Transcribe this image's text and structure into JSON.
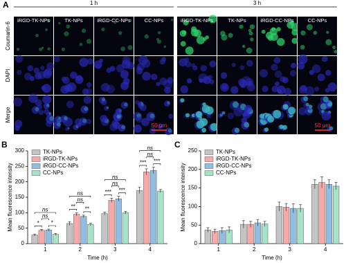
{
  "microscopy": {
    "panel": "A",
    "groups": [
      {
        "time": "1 h",
        "columns": [
          "iRGD-TK-NPs",
          "TK-NPs",
          "iRGD-CC-NPs",
          "CC-NPs"
        ],
        "scale_bar": "50 μm"
      },
      {
        "time": "3 h",
        "columns": [
          "iRGD-TK-NPs",
          "TK-NPs",
          "iRGD-CC-NPs",
          "CC-NPs"
        ],
        "scale_bar": "50 μm"
      }
    ],
    "rows": [
      "Coumarin-6",
      "DAPI",
      "Merge"
    ]
  },
  "chart_data": [
    {
      "type": "bar",
      "panel": "B",
      "x_label": "Time (h)",
      "y_label": "Mean fluorescence intensity",
      "categories": [
        "1",
        "2",
        "3",
        "4"
      ],
      "ylim": [
        0,
        300
      ],
      "yticks": [
        0,
        50,
        100,
        150,
        200,
        250,
        300
      ],
      "legend": "upper left",
      "series": [
        {
          "name": "TK-NPs",
          "color": "#c4c4c4",
          "values": [
            28,
            65,
            97,
            172
          ],
          "errors": [
            3,
            6,
            5,
            10
          ]
        },
        {
          "name": "iRGD-TK-NPs",
          "color": "#f6a9a9",
          "values": [
            43,
            95,
            140,
            232
          ],
          "errors": [
            3,
            5,
            7,
            10
          ]
        },
        {
          "name": "iRGD-CC-NPs",
          "color": "#92bde3",
          "values": [
            44,
            88,
            145,
            237
          ],
          "errors": [
            3,
            4,
            8,
            10
          ]
        },
        {
          "name": "CC-NPs",
          "color": "#a6e3c9",
          "values": [
            30,
            62,
            100,
            170
          ],
          "errors": [
            3,
            4,
            4,
            5
          ]
        }
      ],
      "annotations": [
        [
          {
            "label": "*",
            "pair": [
              0,
              1
            ]
          },
          {
            "label": "*",
            "pair": [
              2,
              3
            ]
          },
          {
            "label": "ns",
            "pair": [
              1,
              2
            ]
          },
          {
            "label": "ns",
            "pair": [
              0,
              3
            ]
          }
        ],
        [
          {
            "label": "**",
            "pair": [
              0,
              1
            ]
          },
          {
            "label": "**",
            "pair": [
              2,
              3
            ]
          },
          {
            "label": "ns",
            "pair": [
              1,
              2
            ]
          },
          {
            "label": "ns",
            "pair": [
              0,
              3
            ]
          }
        ],
        [
          {
            "label": "***",
            "pair": [
              0,
              1
            ]
          },
          {
            "label": "***",
            "pair": [
              2,
              3
            ]
          },
          {
            "label": "ns",
            "pair": [
              1,
              2
            ]
          },
          {
            "label": "ns",
            "pair": [
              0,
              3
            ]
          }
        ],
        [
          {
            "label": "***",
            "pair": [
              0,
              1
            ]
          },
          {
            "label": "***",
            "pair": [
              2,
              3
            ]
          },
          {
            "label": "ns",
            "pair": [
              1,
              2
            ]
          },
          {
            "label": "ns",
            "pair": [
              0,
              3
            ]
          }
        ]
      ]
    },
    {
      "type": "bar",
      "panel": "C",
      "x_label": "Time (h)",
      "y_label": "Mean fluorescence intensity",
      "categories": [
        "1",
        "2",
        "3",
        "4"
      ],
      "ylim": [
        0,
        250
      ],
      "yticks": [
        0,
        50,
        100,
        150,
        200,
        250
      ],
      "legend": "upper left",
      "series": [
        {
          "name": "TK-NPs",
          "color": "#c4c4c4",
          "values": [
            37,
            52,
            100,
            160
          ],
          "errors": [
            6,
            10,
            12,
            12
          ]
        },
        {
          "name": "iRGD-TK-NPs",
          "color": "#f6a9a9",
          "values": [
            33,
            52,
            98,
            165
          ],
          "errors": [
            6,
            8,
            10,
            15
          ]
        },
        {
          "name": "iRGD-CC-NPs",
          "color": "#92bde3",
          "values": [
            35,
            56,
            95,
            160
          ],
          "errors": [
            8,
            9,
            12,
            12
          ]
        },
        {
          "name": "CC-NPs",
          "color": "#a6e3c9",
          "values": [
            37,
            53,
            95,
            155
          ],
          "errors": [
            8,
            7,
            10,
            10
          ]
        }
      ],
      "annotations": []
    }
  ]
}
